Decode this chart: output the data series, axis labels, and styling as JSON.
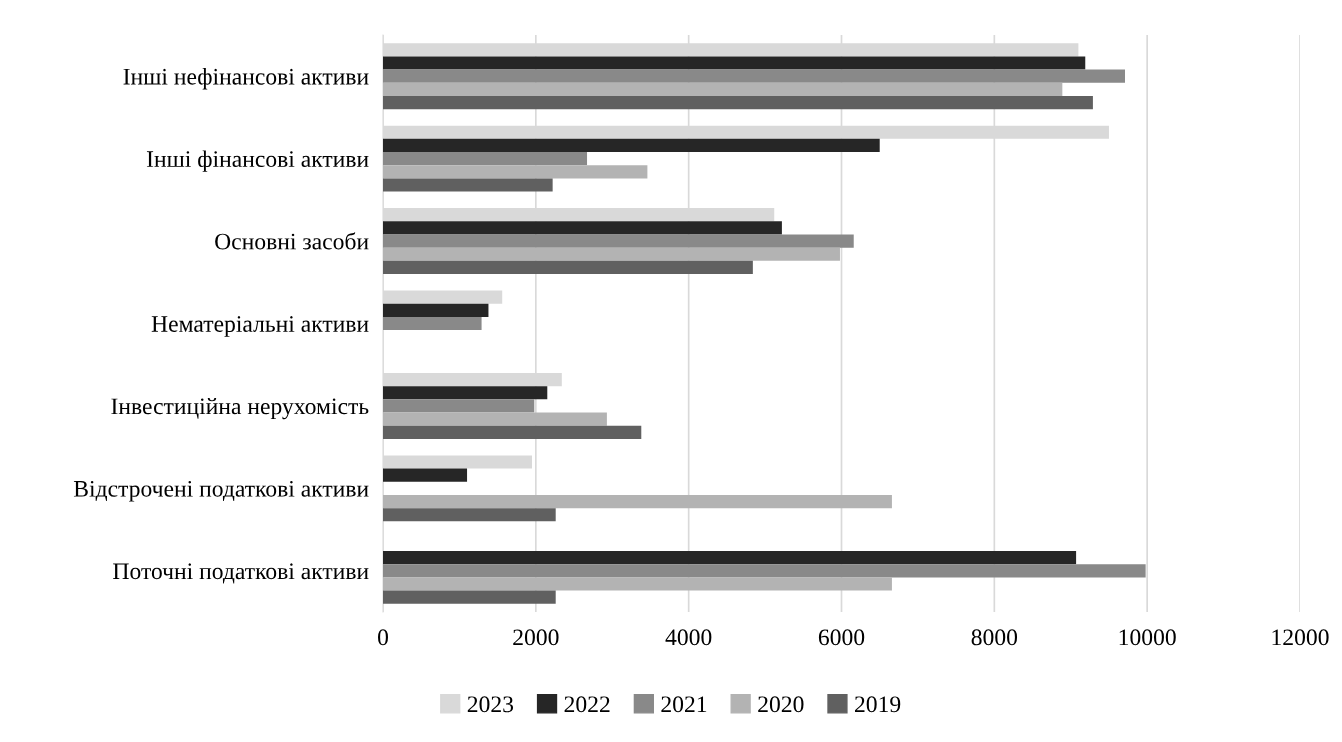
{
  "chart_data": {
    "type": "bar",
    "orientation": "horizontal",
    "categories": [
      "Інші нефінансові активи",
      "Інші фінансові активи",
      "Основні засоби",
      "Нематеріальні активи",
      "Інвестиційна нерухомість",
      "Відстрочені податкові активи",
      "Поточні податкові активи"
    ],
    "series": [
      {
        "name": "2023",
        "color": "#d9d9d9",
        "values": [
          9100,
          9500,
          5120,
          1560,
          2340,
          1950,
          null
        ]
      },
      {
        "name": "2022",
        "color": "#262626",
        "values": [
          9190,
          6500,
          5220,
          1380,
          2150,
          1100,
          9070
        ]
      },
      {
        "name": "2021",
        "color": "#898989",
        "values": [
          9710,
          2670,
          6160,
          1290,
          1980,
          null,
          9980
        ]
      },
      {
        "name": "2020",
        "color": "#b3b3b3",
        "values": [
          8890,
          3460,
          5980,
          null,
          2930,
          6660,
          6660
        ]
      },
      {
        "name": "2019",
        "color": "#606060",
        "values": [
          9290,
          2220,
          4840,
          null,
          3380,
          2260,
          2260
        ]
      }
    ],
    "xlim": [
      0,
      12000
    ],
    "xticks": [
      0,
      2000,
      4000,
      6000,
      8000,
      10000,
      12000
    ],
    "grid": "x",
    "legend": "bottom"
  }
}
